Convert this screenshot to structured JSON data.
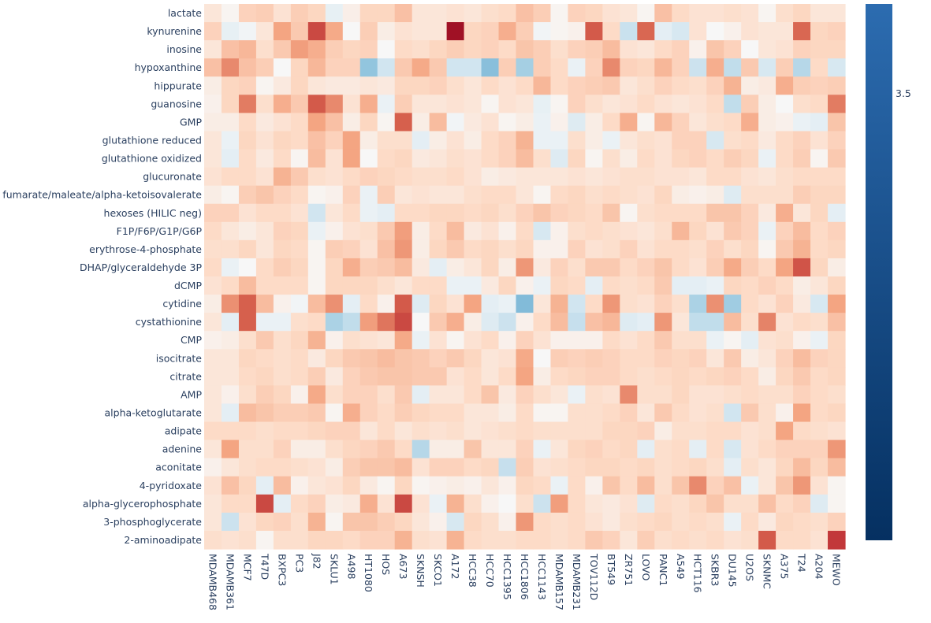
{
  "chart_data": {
    "type": "heatmap",
    "title": "",
    "xlabel": "",
    "ylabel": "",
    "rows": [
      "lactate",
      "kynurenine",
      "inosine",
      "hypoxanthine",
      "hippurate",
      "guanosine",
      "GMP",
      "glutathione reduced",
      "glutathione oxidized",
      "glucuronate",
      "fumarate/maleate/alpha-ketoisovalerate",
      "hexoses (HILIC neg)",
      "F1P/F6P/G1P/G6P",
      "erythrose-4-phosphate",
      "DHAP/glyceraldehyde 3P",
      "dCMP",
      "cytidine",
      "cystathionine",
      "CMP",
      "isocitrate",
      "citrate",
      "AMP",
      "alpha-ketoglutarate",
      "adipate",
      "adenine",
      "aconitate",
      "4-pyridoxate",
      "alpha-glycerophosphate",
      "3-phosphoglycerate",
      "2-aminoadipate"
    ],
    "columns": [
      "MDAMB468",
      "MDAMB361",
      "MCF7",
      "T47D",
      "BXPC3",
      "PC3",
      "J82",
      "SKLU1",
      "A498",
      "HT1080",
      "HOS",
      "A673",
      "SKNSH",
      "SKCO1",
      "A172",
      "HCC38",
      "HCC70",
      "HCC1395",
      "HCC1806",
      "HCC1143",
      "MDAMB157",
      "MDAMB231",
      "TOV112D",
      "BT549",
      "ZR751",
      "LOVO",
      "PANC1",
      "A549",
      "HCT116",
      "SKBR3",
      "DU145",
      "U2OS",
      "SKNMC",
      "A375",
      "T24",
      "A204",
      "MEWO"
    ],
    "values": [
      [
        0.1,
        0.02,
        0.2,
        0.22,
        0.12,
        0.22,
        0.18,
        -0.05,
        0.05,
        0.18,
        0.18,
        0.28,
        0.1,
        0.1,
        0.12,
        0.1,
        0.14,
        0.16,
        0.28,
        0.22,
        0.02,
        0.2,
        0.18,
        0.12,
        0.1,
        0.02,
        0.28,
        0.16,
        0.12,
        0.12,
        0.14,
        0.12,
        0.02,
        0.14,
        0.18,
        0.1,
        0.1
      ],
      [
        0.2,
        -0.05,
        -0.02,
        0.1,
        0.4,
        0.24,
        0.68,
        0.38,
        0.0,
        0.22,
        0.06,
        0.12,
        0.1,
        0.1,
        0.92,
        0.18,
        0.2,
        0.36,
        0.22,
        -0.02,
        0.02,
        0.04,
        0.62,
        0.16,
        -0.15,
        0.58,
        -0.06,
        -0.1,
        0.12,
        0.0,
        0.04,
        0.12,
        0.1,
        0.1,
        0.58,
        0.18,
        0.2
      ],
      [
        0.1,
        0.28,
        0.32,
        0.14,
        0.24,
        0.42,
        0.36,
        0.22,
        0.18,
        0.2,
        0.0,
        0.16,
        0.14,
        0.18,
        0.22,
        0.18,
        0.2,
        0.16,
        0.26,
        0.22,
        0.14,
        0.2,
        0.22,
        0.3,
        0.12,
        0.1,
        0.16,
        0.2,
        0.04,
        0.26,
        0.2,
        0.0,
        0.1,
        0.12,
        0.2,
        0.18,
        0.18
      ],
      [
        0.28,
        0.48,
        0.28,
        0.22,
        0.0,
        0.18,
        0.32,
        0.2,
        0.2,
        -0.35,
        -0.12,
        0.24,
        0.38,
        0.24,
        -0.12,
        -0.12,
        -0.38,
        0.22,
        -0.28,
        0.22,
        0.16,
        -0.04,
        0.2,
        0.48,
        0.2,
        0.18,
        0.32,
        0.2,
        -0.14,
        0.36,
        -0.18,
        0.24,
        -0.1,
        0.22,
        -0.22,
        0.16,
        -0.1
      ],
      [
        0.06,
        0.18,
        0.2,
        0.02,
        0.08,
        0.18,
        0.1,
        0.08,
        0.08,
        0.1,
        0.08,
        0.18,
        0.18,
        0.2,
        0.14,
        0.1,
        0.16,
        0.12,
        0.16,
        0.32,
        0.16,
        0.2,
        0.22,
        0.24,
        0.1,
        0.14,
        0.2,
        0.16,
        0.14,
        0.2,
        0.34,
        0.06,
        0.08,
        0.36,
        0.22,
        0.2,
        0.22
      ],
      [
        0.04,
        0.18,
        0.52,
        0.14,
        0.36,
        0.24,
        0.62,
        0.48,
        0.12,
        0.36,
        -0.04,
        0.22,
        0.1,
        0.1,
        0.12,
        0.1,
        0.02,
        0.12,
        0.1,
        -0.05,
        0.02,
        0.2,
        0.14,
        0.1,
        0.12,
        0.16,
        0.12,
        0.1,
        0.12,
        0.16,
        -0.18,
        0.22,
        0.06,
        0.0,
        0.14,
        0.16,
        0.52
      ],
      [
        0.06,
        0.06,
        0.16,
        0.08,
        0.12,
        0.16,
        0.4,
        0.28,
        0.06,
        0.18,
        0.02,
        0.6,
        0.06,
        0.3,
        -0.02,
        0.08,
        0.12,
        0.02,
        0.06,
        -0.04,
        0.04,
        -0.08,
        0.06,
        0.16,
        0.36,
        0.02,
        0.32,
        0.2,
        0.1,
        0.14,
        0.16,
        0.36,
        0.06,
        0.04,
        -0.04,
        -0.06,
        0.26
      ],
      [
        0.1,
        -0.04,
        0.18,
        0.12,
        0.18,
        0.16,
        0.28,
        0.2,
        0.4,
        0.06,
        0.14,
        0.14,
        -0.06,
        0.06,
        0.12,
        0.06,
        0.16,
        0.2,
        0.34,
        -0.04,
        -0.04,
        0.14,
        0.06,
        -0.04,
        0.1,
        0.14,
        0.12,
        0.2,
        0.2,
        -0.1,
        0.14,
        0.16,
        0.08,
        0.16,
        0.2,
        0.12,
        0.2
      ],
      [
        0.1,
        -0.06,
        0.16,
        0.08,
        0.16,
        0.02,
        0.3,
        0.12,
        0.4,
        0.0,
        0.16,
        0.18,
        0.08,
        0.1,
        0.14,
        0.12,
        0.16,
        0.2,
        0.3,
        0.14,
        -0.08,
        0.18,
        0.02,
        0.14,
        0.06,
        0.16,
        0.12,
        0.18,
        0.2,
        0.16,
        0.22,
        0.18,
        -0.04,
        0.16,
        0.22,
        0.02,
        0.24
      ],
      [
        0.12,
        0.16,
        0.16,
        0.12,
        0.34,
        0.24,
        0.14,
        0.12,
        0.16,
        0.2,
        0.18,
        0.16,
        0.14,
        0.14,
        0.16,
        0.12,
        0.06,
        0.08,
        0.1,
        0.1,
        0.1,
        0.12,
        0.1,
        0.12,
        0.14,
        0.14,
        0.12,
        0.12,
        0.1,
        0.16,
        0.16,
        0.12,
        0.1,
        0.14,
        0.16,
        0.16,
        0.16
      ],
      [
        0.06,
        0.02,
        0.22,
        0.26,
        0.2,
        0.16,
        0.02,
        0.04,
        0.2,
        -0.04,
        0.22,
        0.1,
        0.12,
        0.1,
        0.1,
        0.14,
        0.16,
        0.16,
        0.1,
        0.02,
        0.16,
        0.18,
        0.14,
        0.16,
        0.14,
        0.12,
        0.18,
        0.06,
        0.04,
        0.06,
        -0.08,
        0.14,
        0.14,
        0.14,
        0.22,
        0.18,
        0.18
      ],
      [
        0.2,
        0.2,
        0.12,
        0.16,
        0.16,
        0.12,
        -0.12,
        0.1,
        0.16,
        -0.04,
        -0.06,
        0.16,
        0.16,
        0.18,
        0.18,
        0.16,
        0.18,
        0.14,
        0.2,
        0.26,
        0.2,
        0.18,
        0.16,
        0.26,
        0.02,
        0.14,
        0.16,
        0.16,
        0.16,
        0.26,
        0.26,
        0.2,
        0.08,
        0.36,
        0.1,
        0.18,
        -0.06
      ],
      [
        0.16,
        0.1,
        0.06,
        0.1,
        0.2,
        0.18,
        -0.04,
        0.04,
        0.12,
        0.14,
        0.24,
        0.42,
        0.06,
        0.16,
        0.3,
        0.08,
        0.12,
        0.04,
        0.16,
        -0.1,
        0.04,
        0.14,
        0.16,
        0.14,
        0.12,
        0.1,
        0.14,
        0.32,
        0.18,
        0.12,
        0.24,
        0.2,
        -0.04,
        0.2,
        0.3,
        0.16,
        0.2
      ],
      [
        0.14,
        0.14,
        0.18,
        0.1,
        0.18,
        0.16,
        0.02,
        0.22,
        0.2,
        0.12,
        0.28,
        0.44,
        0.06,
        0.18,
        0.24,
        0.16,
        0.18,
        0.14,
        0.18,
        0.04,
        0.04,
        0.2,
        0.12,
        0.14,
        0.2,
        0.12,
        0.16,
        0.16,
        0.14,
        0.2,
        0.14,
        0.18,
        0.02,
        0.24,
        0.34,
        0.16,
        0.18
      ],
      [
        0.16,
        -0.04,
        0.0,
        0.16,
        0.22,
        0.18,
        0.02,
        0.18,
        0.36,
        0.22,
        0.24,
        0.3,
        0.08,
        -0.06,
        0.06,
        0.1,
        0.18,
        0.06,
        0.44,
        0.08,
        0.2,
        0.14,
        0.24,
        0.24,
        0.16,
        0.2,
        0.26,
        0.16,
        0.12,
        0.22,
        0.38,
        0.22,
        0.16,
        0.4,
        0.64,
        0.18,
        0.06
      ],
      [
        0.12,
        0.16,
        0.3,
        0.16,
        0.16,
        0.16,
        0.02,
        0.18,
        0.18,
        0.18,
        0.14,
        0.1,
        0.16,
        0.16,
        -0.04,
        -0.04,
        0.08,
        0.18,
        0.04,
        -0.04,
        0.18,
        0.16,
        -0.06,
        0.16,
        0.14,
        0.16,
        0.24,
        -0.06,
        -0.06,
        -0.04,
        0.18,
        0.16,
        0.2,
        0.16,
        0.06,
        0.1,
        0.18
      ],
      [
        0.06,
        0.46,
        0.6,
        0.3,
        0.04,
        -0.02,
        0.3,
        0.46,
        -0.06,
        0.16,
        0.04,
        0.62,
        -0.08,
        0.18,
        0.12,
        0.4,
        -0.06,
        -0.04,
        -0.4,
        0.1,
        0.34,
        -0.12,
        0.16,
        0.44,
        0.14,
        0.12,
        0.2,
        0.14,
        -0.26,
        0.46,
        -0.3,
        0.16,
        0.12,
        0.2,
        0.08,
        -0.1,
        0.4
      ],
      [
        0.1,
        -0.06,
        0.6,
        -0.04,
        -0.04,
        0.14,
        0.16,
        -0.26,
        -0.18,
        0.42,
        0.54,
        0.68,
        0.0,
        0.24,
        0.36,
        0.06,
        -0.08,
        -0.14,
        0.04,
        0.16,
        0.3,
        -0.16,
        0.28,
        0.32,
        -0.08,
        -0.06,
        0.44,
        0.1,
        -0.18,
        -0.18,
        0.3,
        0.14,
        0.5,
        0.12,
        0.16,
        0.14,
        0.28
      ],
      [
        0.04,
        0.06,
        0.14,
        0.24,
        0.14,
        0.18,
        0.34,
        0.04,
        0.14,
        0.12,
        0.1,
        0.38,
        -0.04,
        0.12,
        0.02,
        0.12,
        0.16,
        0.04,
        0.2,
        0.12,
        0.04,
        0.04,
        0.04,
        0.16,
        0.12,
        0.16,
        0.24,
        0.14,
        0.14,
        -0.04,
        0.02,
        -0.06,
        0.12,
        0.14,
        0.04,
        -0.04,
        0.18
      ],
      [
        0.1,
        0.1,
        0.18,
        0.16,
        0.14,
        0.16,
        0.08,
        0.18,
        0.24,
        0.26,
        0.3,
        0.26,
        0.24,
        0.2,
        0.24,
        0.18,
        0.1,
        0.12,
        0.38,
        0.0,
        0.22,
        0.2,
        0.22,
        0.2,
        0.16,
        0.16,
        0.2,
        0.18,
        0.2,
        0.1,
        0.24,
        0.06,
        0.1,
        0.2,
        0.3,
        0.2,
        0.18
      ],
      [
        0.1,
        0.1,
        0.16,
        0.18,
        0.14,
        0.16,
        0.22,
        0.08,
        0.2,
        0.24,
        0.26,
        0.26,
        0.24,
        0.24,
        0.12,
        0.16,
        0.1,
        0.16,
        0.4,
        0.06,
        0.16,
        0.18,
        0.2,
        0.2,
        0.16,
        0.14,
        0.16,
        0.18,
        0.16,
        0.18,
        0.2,
        0.16,
        0.06,
        0.18,
        0.24,
        0.16,
        0.18
      ],
      [
        0.1,
        0.04,
        0.14,
        0.22,
        0.18,
        0.04,
        0.38,
        0.14,
        0.2,
        0.2,
        0.14,
        0.24,
        -0.06,
        0.1,
        0.1,
        0.16,
        0.26,
        0.08,
        0.2,
        0.14,
        0.1,
        -0.04,
        0.14,
        0.12,
        0.48,
        0.14,
        0.14,
        0.18,
        0.12,
        0.12,
        0.14,
        0.16,
        0.14,
        0.14,
        0.2,
        0.16,
        0.14
      ],
      [
        0.1,
        -0.06,
        0.3,
        0.26,
        0.22,
        0.22,
        0.24,
        0.02,
        0.36,
        0.2,
        0.16,
        0.22,
        0.18,
        0.16,
        0.16,
        0.1,
        0.1,
        0.06,
        0.16,
        0.02,
        0.02,
        0.14,
        0.14,
        0.16,
        0.2,
        0.1,
        0.24,
        0.16,
        0.12,
        0.14,
        -0.12,
        0.24,
        0.14,
        0.04,
        0.4,
        0.16,
        0.18
      ],
      [
        0.16,
        0.16,
        0.16,
        0.14,
        0.16,
        0.16,
        0.18,
        0.2,
        0.2,
        0.1,
        0.16,
        0.1,
        0.14,
        0.12,
        0.14,
        0.1,
        0.12,
        0.14,
        0.16,
        0.14,
        0.14,
        0.14,
        0.14,
        0.18,
        0.18,
        0.2,
        0.06,
        0.14,
        0.14,
        0.16,
        0.16,
        0.12,
        0.14,
        0.4,
        0.16,
        0.14,
        0.12
      ],
      [
        0.1,
        0.4,
        0.14,
        0.14,
        0.2,
        0.06,
        0.06,
        0.14,
        0.18,
        0.2,
        0.24,
        0.16,
        -0.22,
        0.06,
        0.06,
        0.26,
        0.1,
        0.1,
        0.2,
        -0.04,
        0.1,
        0.18,
        0.2,
        0.16,
        0.18,
        -0.06,
        0.14,
        0.16,
        -0.06,
        0.16,
        -0.1,
        0.12,
        0.16,
        0.2,
        0.2,
        0.2,
        0.44
      ],
      [
        0.04,
        0.1,
        0.14,
        0.16,
        0.16,
        0.14,
        0.12,
        0.06,
        0.22,
        0.26,
        0.26,
        0.3,
        0.12,
        0.2,
        0.2,
        0.16,
        0.18,
        -0.16,
        0.22,
        0.12,
        0.14,
        0.16,
        0.18,
        0.18,
        0.16,
        0.18,
        0.14,
        0.16,
        0.18,
        0.14,
        -0.06,
        0.14,
        0.1,
        0.18,
        0.3,
        0.18,
        0.3
      ],
      [
        0.12,
        0.28,
        0.18,
        -0.06,
        0.3,
        0.04,
        0.1,
        0.12,
        0.18,
        0.08,
        0.02,
        0.18,
        0.02,
        0.04,
        0.06,
        0.04,
        0.1,
        0.04,
        0.18,
        0.16,
        -0.04,
        0.16,
        0.04,
        0.26,
        0.16,
        0.3,
        0.14,
        0.26,
        0.48,
        0.2,
        0.28,
        -0.04,
        0.1,
        0.26,
        0.44,
        0.12,
        0.02
      ],
      [
        0.1,
        0.16,
        0.16,
        0.68,
        -0.06,
        0.16,
        0.2,
        0.06,
        0.08,
        0.36,
        0.12,
        0.68,
        0.12,
        -0.04,
        0.34,
        0.14,
        0.04,
        0.0,
        0.14,
        -0.14,
        0.42,
        0.16,
        0.1,
        0.08,
        0.12,
        -0.08,
        0.16,
        0.14,
        0.18,
        0.26,
        0.14,
        0.14,
        0.28,
        0.16,
        0.2,
        -0.08,
        0.02
      ],
      [
        0.1,
        -0.14,
        0.12,
        0.18,
        0.2,
        0.14,
        0.34,
        0.02,
        0.26,
        0.26,
        0.22,
        0.18,
        0.1,
        0.04,
        -0.1,
        0.18,
        0.14,
        0.04,
        0.44,
        0.16,
        0.14,
        0.16,
        0.12,
        0.08,
        0.14,
        0.16,
        0.18,
        0.14,
        0.16,
        0.14,
        -0.04,
        0.16,
        0.08,
        0.18,
        0.16,
        0.14,
        0.2
      ],
      [
        0.14,
        0.12,
        0.14,
        0.02,
        0.14,
        0.14,
        0.18,
        0.18,
        0.16,
        0.2,
        0.2,
        0.34,
        0.14,
        0.12,
        0.34,
        0.16,
        0.14,
        0.14,
        0.16,
        0.16,
        0.14,
        0.16,
        0.24,
        0.2,
        0.1,
        0.22,
        0.14,
        0.16,
        0.14,
        0.16,
        0.12,
        0.14,
        0.62,
        0.16,
        0.16,
        0.12,
        0.74
      ]
    ],
    "colorbar": {
      "tick_labels": [
        "3.5"
      ],
      "tick_values": [
        3.5
      ],
      "range": [
        1.0,
        4.0
      ],
      "colorscale": "RdBu_r",
      "high_color": "#2c6cb0",
      "low_color": "#053061"
    },
    "colors": {
      "strong_red": "#b2182b",
      "mid_red": "#d6604d",
      "light_red": "#f4a582",
      "pale_red": "#fddbc7",
      "white": "#f7f7f7",
      "pale_blue": "#d1e5f0",
      "light_blue": "#92c5de"
    }
  }
}
